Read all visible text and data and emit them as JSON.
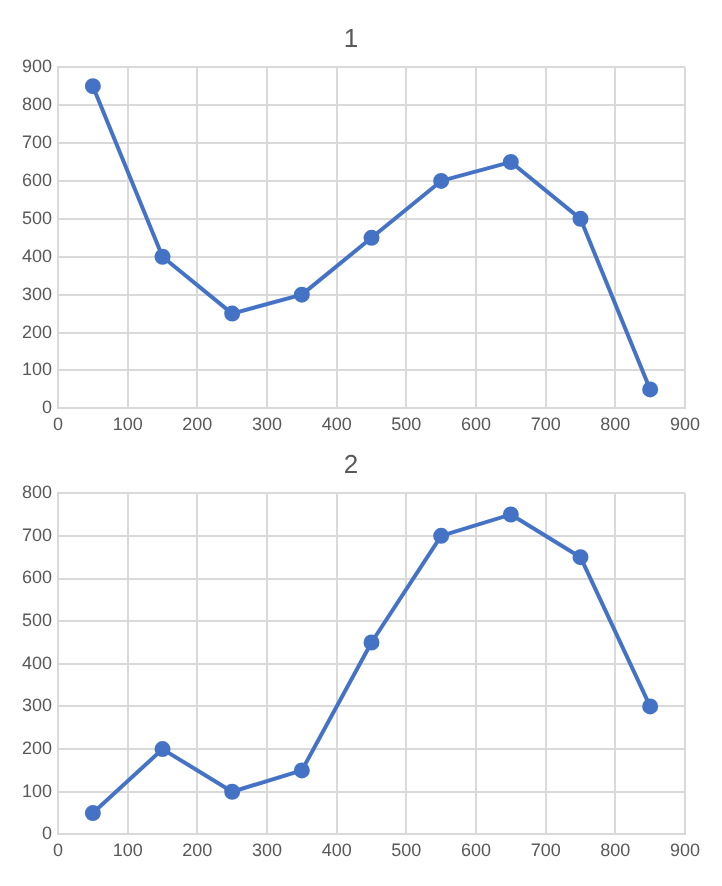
{
  "chart_data": [
    {
      "type": "line",
      "title": "1",
      "x": [
        50,
        150,
        250,
        350,
        450,
        550,
        650,
        750,
        850
      ],
      "series": [
        {
          "color": "#4472c4",
          "values": [
            850,
            400,
            250,
            300,
            450,
            600,
            650,
            500,
            50
          ]
        }
      ],
      "xlim": [
        0,
        900
      ],
      "xticks": [
        0,
        100,
        200,
        300,
        400,
        500,
        600,
        700,
        800,
        900
      ],
      "ylim": [
        0,
        900
      ],
      "yticks": [
        0,
        100,
        200,
        300,
        400,
        500,
        600,
        700,
        800,
        900
      ],
      "grid": true,
      "marker": "circle",
      "line_style": "solid"
    },
    {
      "type": "line",
      "title": "2",
      "x": [
        50,
        150,
        250,
        350,
        450,
        550,
        650,
        750,
        850
      ],
      "series": [
        {
          "color": "#4472c4",
          "values": [
            50,
            200,
            100,
            150,
            450,
            700,
            750,
            650,
            300
          ]
        }
      ],
      "xlim": [
        0,
        900
      ],
      "xticks": [
        0,
        100,
        200,
        300,
        400,
        500,
        600,
        700,
        800,
        900
      ],
      "ylim": [
        0,
        800
      ],
      "yticks": [
        0,
        100,
        200,
        300,
        400,
        500,
        600,
        700,
        800
      ],
      "grid": true,
      "marker": "circle",
      "line_style": "solid"
    }
  ]
}
